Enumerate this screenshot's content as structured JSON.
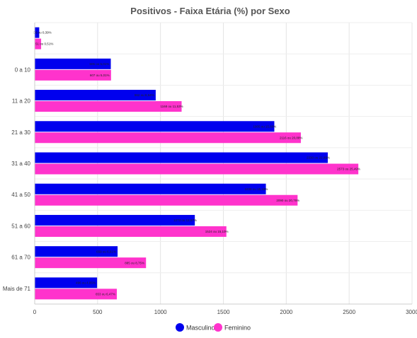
{
  "chart_data": {
    "type": "bar",
    "orientation": "horizontal",
    "title": "Positivos - Faixa Etária (%) por Sexo",
    "categories": [
      "",
      "0 a 10",
      "11 a 20",
      "21 a 30",
      "31 a 40",
      "41 a 50",
      "51 a 60",
      "61 a 70",
      "Mais de 71"
    ],
    "series": [
      {
        "name": "Masculino",
        "color": "#0000ee",
        "values": [
          36,
          605,
          962,
          1905,
          2330,
          1838,
          1273,
          659,
          496
        ],
        "labels": [
          "36 ou 0,39%",
          "605 ou 5,01%",
          "962 ou 8,54%",
          "1905 ou 15,60%",
          "2330 ou 22,09%",
          "1838 ou 15,18%",
          "1273 ou 12,57%",
          "659 ou 6,61%",
          "496 ou 4,85%"
        ]
      },
      {
        "name": "Feminino",
        "color": "#ff33cc",
        "values": [
          51,
          607,
          1168,
          2116,
          2573,
          2090,
          1524,
          885,
          653
        ],
        "labels": [
          "51 ou 0,51%",
          "607 ou 5,01%",
          "1168 ou 11,53%",
          "2116 ou 20,88%",
          "2573 ou 25,49%",
          "2090 ou 20,76%",
          "1524 ou 15,10%",
          "885 ou 8,75%",
          "653 ou 6,47%"
        ]
      }
    ],
    "x_ticks": [
      "0",
      "500",
      "1000",
      "1500",
      "2000",
      "2500",
      "3000"
    ],
    "xlim": [
      0,
      3000
    ],
    "grid": true,
    "legend_position": "bottom"
  }
}
